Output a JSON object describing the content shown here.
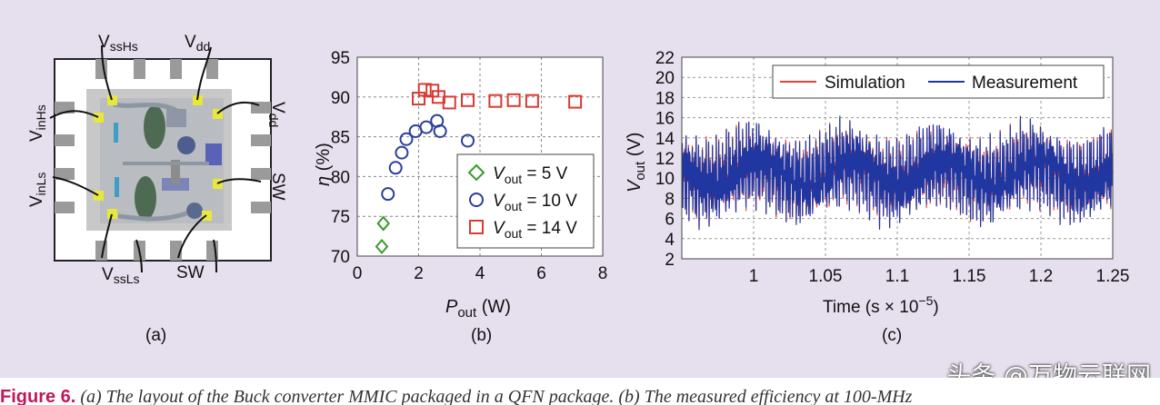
{
  "panel_a": {
    "label": "(a)",
    "pins": {
      "vss_hs": "V",
      "vss_hs_sub": "ssHs",
      "vdd_top": "V",
      "vdd_top_sub": "dd",
      "vin_hs": "V",
      "vin_hs_sub": "inHs",
      "vin_ls": "V",
      "vin_ls_sub": "inLs",
      "vdd_right": "V",
      "vdd_right_sub": "dd",
      "sw_right": "SW",
      "vss_ls": "V",
      "vss_ls_sub": "ssLs",
      "sw_bottom": "SW"
    }
  },
  "panel_b": {
    "label": "(b)"
  },
  "panel_c": {
    "label": "(c)"
  },
  "chart_data": [
    {
      "type": "scatter",
      "xlabel_main": "P",
      "xlabel_sub": "out",
      "xlabel_unit": " (W)",
      "ylabel_main": "η",
      "ylabel_unit": " (%)",
      "xlim": [
        0,
        8
      ],
      "ylim": [
        70,
        95
      ],
      "xticks": [
        0,
        2,
        4,
        6,
        8
      ],
      "yticks": [
        70,
        75,
        80,
        85,
        90,
        95
      ],
      "grid": true,
      "legend_position": "lower-right",
      "series": [
        {
          "name": "V",
          "name_sub": "out",
          "name_suffix": " = 5 V",
          "marker": "diamond",
          "color": "#3a9a2e",
          "x": [
            0.8,
            0.85
          ],
          "y": [
            71.2,
            74.1
          ]
        },
        {
          "name": "V",
          "name_sub": "out",
          "name_suffix": " = 10 V",
          "marker": "circle",
          "color": "#2b3f9a",
          "x": [
            1.0,
            1.25,
            1.45,
            1.6,
            1.9,
            2.25,
            2.6,
            2.7,
            3.6
          ],
          "y": [
            77.8,
            81.1,
            83.0,
            84.7,
            85.7,
            86.2,
            87.0,
            85.7,
            84.5
          ]
        },
        {
          "name": "V",
          "name_sub": "out",
          "name_suffix": " = 14 V",
          "marker": "square",
          "color": "#d93a32",
          "x": [
            2.0,
            2.2,
            2.45,
            2.65,
            3.0,
            3.6,
            4.5,
            5.1,
            5.7,
            7.1
          ],
          "y": [
            89.8,
            90.9,
            90.8,
            90.0,
            89.3,
            89.6,
            89.5,
            89.6,
            89.5,
            89.4
          ]
        }
      ]
    },
    {
      "type": "line",
      "xlabel": "Time (s × 10",
      "xlabel_sup": "−5",
      "xlabel_close": ")",
      "ylabel_main": "V",
      "ylabel_sub": "out",
      "ylabel_unit": " (V)",
      "xlim": [
        0.95,
        1.25
      ],
      "ylim": [
        2,
        22
      ],
      "xticks": [
        1.0,
        1.05,
        1.1,
        1.15,
        1.2,
        1.25
      ],
      "xtick_labels": [
        "1",
        "1.05",
        "1.1",
        "1.15",
        "1.2",
        "1.25"
      ],
      "yticks": [
        2,
        4,
        6,
        8,
        10,
        12,
        14,
        16,
        18,
        20,
        22
      ],
      "grid": true,
      "legend_position": "top-right",
      "series": [
        {
          "name": "Simulation",
          "color": "#e8413a"
        },
        {
          "name": "Measurement",
          "color": "#2036a0"
        }
      ],
      "waveform_range_v": [
        4.5,
        16.5
      ]
    }
  ],
  "caption": {
    "fig_label": "Figure 6.",
    "text": " (a) The layout of the Buck converter MMIC packaged in a QFN package. (b) The measured efficiency at 100-MHz"
  },
  "watermark": "头条 @万物云联网"
}
